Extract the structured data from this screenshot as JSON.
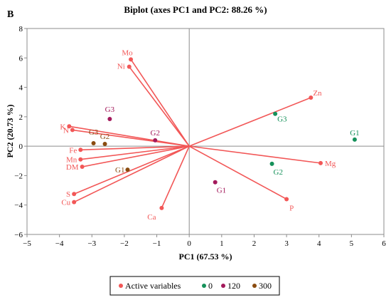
{
  "panel_label": "B",
  "chart_data": {
    "type": "scatter",
    "title": "Biplot (axes PC1 and PC2: 88.26 %)",
    "xlabel": "PC1 (67.53 %)",
    "ylabel": "PC2 (20.73 %)",
    "xlim": [
      -5,
      6
    ],
    "ylim": [
      -6,
      8
    ],
    "xticks": [
      -5,
      -4,
      -3,
      -2,
      -1,
      0,
      1,
      2,
      3,
      4,
      5,
      6
    ],
    "yticks": [
      -6,
      -4,
      -2,
      0,
      2,
      4,
      6,
      8
    ],
    "grid": false,
    "legend_position": "bottom",
    "colors": {
      "active": "#f25757",
      "s0": "#15915a",
      "s120": "#a3195b",
      "s300": "#8a4b0f",
      "axis": "#8c8c8c"
    },
    "legend": [
      {
        "label": "Active variables",
        "series": "active"
      },
      {
        "label": "0",
        "series": "s0"
      },
      {
        "label": "120",
        "series": "s120"
      },
      {
        "label": "300",
        "series": "s300"
      }
    ],
    "variables": [
      {
        "label": "Mo",
        "x": -1.8,
        "y": 5.9
      },
      {
        "label": "Ni",
        "x": -1.85,
        "y": 5.4
      },
      {
        "label": "K",
        "x": -3.7,
        "y": 1.35
      },
      {
        "label": "N",
        "x": -3.6,
        "y": 1.1
      },
      {
        "label": "Fe",
        "x": -3.35,
        "y": -0.25
      },
      {
        "label": "Mn",
        "x": -3.35,
        "y": -0.9
      },
      {
        "label": "DM",
        "x": -3.3,
        "y": -1.4
      },
      {
        "label": "S",
        "x": -3.55,
        "y": -3.25
      },
      {
        "label": "Cu",
        "x": -3.55,
        "y": -3.8
      },
      {
        "label": "Ca",
        "x": -0.85,
        "y": -4.2
      },
      {
        "label": "P",
        "x": 3.0,
        "y": -3.6
      },
      {
        "label": "Mg",
        "x": 4.05,
        "y": -1.15
      },
      {
        "label": "Zn",
        "x": 3.75,
        "y": 3.3
      }
    ],
    "observations": [
      {
        "series": "s0",
        "label": "G1",
        "x": 5.1,
        "y": 0.45
      },
      {
        "series": "s0",
        "label": "G2",
        "x": 2.55,
        "y": -1.2
      },
      {
        "series": "s0",
        "label": "G3",
        "x": 2.65,
        "y": 2.2
      },
      {
        "series": "s120",
        "label": "G1",
        "x": 0.8,
        "y": -2.45
      },
      {
        "series": "s120",
        "label": "G2",
        "x": -1.05,
        "y": 0.4
      },
      {
        "series": "s120",
        "label": "G3",
        "x": -2.45,
        "y": 1.85
      },
      {
        "series": "s300",
        "label": "G1",
        "x": -1.9,
        "y": -1.6
      },
      {
        "series": "s300",
        "label": "G2",
        "x": -2.6,
        "y": 0.15
      },
      {
        "series": "s300",
        "label": "G3",
        "x": -2.95,
        "y": 0.2
      }
    ]
  }
}
